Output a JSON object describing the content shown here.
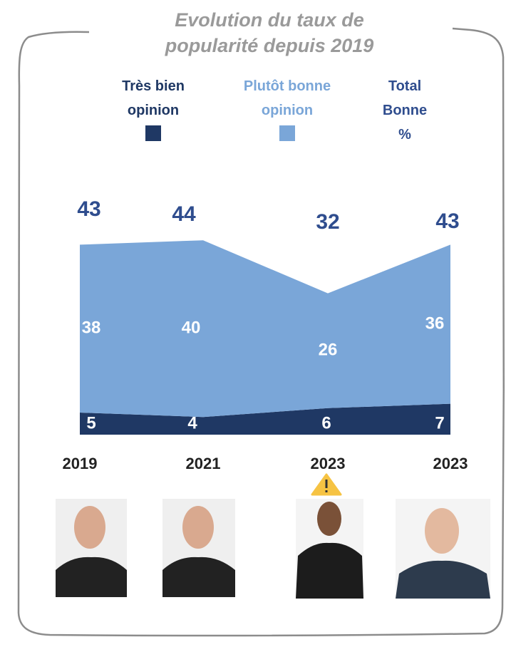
{
  "chart_data": {
    "type": "stacked-area",
    "title": "Evolution du taux de popularité depuis 2019",
    "categories": [
      "2019",
      "2021",
      "2023",
      "2023"
    ],
    "series": [
      {
        "name": "Très bien opinion",
        "color": "#1f3864",
        "values": [
          5,
          4,
          6,
          7
        ]
      },
      {
        "name": "Plutôt bonne opinion",
        "color": "#7aa6d8",
        "values": [
          38,
          40,
          26,
          36
        ]
      },
      {
        "name": "Total Bonne %",
        "color": "#2f4d8e",
        "values": [
          43,
          44,
          32,
          43
        ]
      }
    ]
  }
}
